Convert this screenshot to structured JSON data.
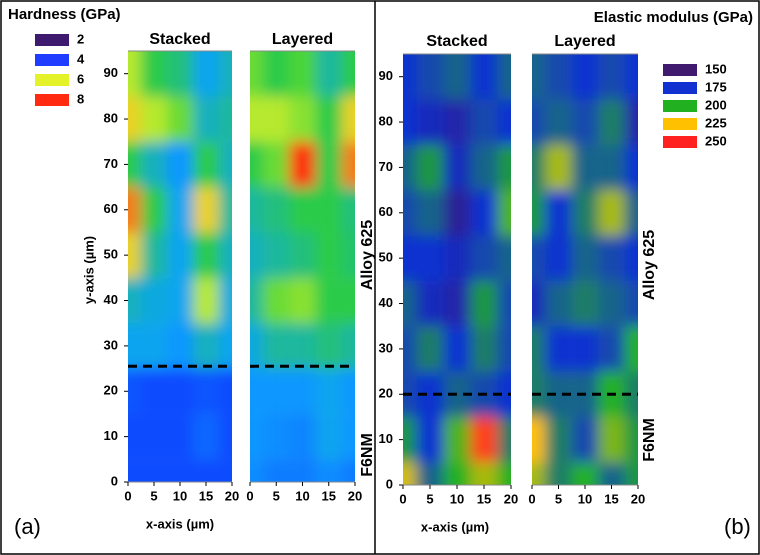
{
  "chart_data": [
    {
      "type": "heatmap",
      "title": "Hardness (GPa)",
      "xlabel": "x-axis (µm)",
      "ylabel": "y-axis (µm)",
      "tag": "(a)",
      "levels": [
        2,
        4,
        6,
        8
      ],
      "level_colors": [
        "#3d1a6e",
        "#1f3cff",
        "#e4f22a",
        "#ff2a10"
      ],
      "colorscale": [
        "#3d1a6e",
        "#1230ff",
        "#0aa0ff",
        "#2ccf3a",
        "#e4f22a",
        "#ff2a10"
      ],
      "x": [
        0,
        5,
        10,
        15,
        20
      ],
      "y": [
        0,
        10,
        20,
        30,
        40,
        50,
        60,
        70,
        80,
        90
      ],
      "xlim": [
        0,
        20
      ],
      "ylim": [
        0,
        95
      ],
      "xticks": [
        0,
        5,
        10,
        15,
        20
      ],
      "yticks": [
        0,
        10,
        20,
        30,
        40,
        50,
        60,
        70,
        80,
        90
      ],
      "interface": 25.5,
      "annotations": [
        "Alloy 625",
        "F6NM"
      ],
      "panels": [
        {
          "title": "Stacked",
          "z": [
            [
              3.5,
              3.5,
              3.5,
              3.5,
              3.5
            ],
            [
              3.5,
              3.5,
              3.5,
              3.8,
              3.5
            ],
            [
              3.6,
              3.5,
              3.5,
              3.6,
              3.5
            ],
            [
              4.5,
              4.5,
              4.3,
              4.8,
              4.5
            ],
            [
              4.8,
              4.6,
              4.5,
              6.5,
              4.6
            ],
            [
              7,
              5,
              4.5,
              5.5,
              4.8
            ],
            [
              7.5,
              5.5,
              4.5,
              7,
              5
            ],
            [
              5.5,
              4.8,
              4.3,
              5.5,
              4.8
            ],
            [
              7,
              6.5,
              6,
              4.8,
              5
            ],
            [
              6.5,
              5.5,
              5.2,
              4.5,
              4.8
            ]
          ]
        },
        {
          "title": "Layered",
          "z": [
            [
              4.2,
              4,
              4,
              4.2,
              4
            ],
            [
              4.3,
              4.2,
              4.1,
              4.5,
              4.3
            ],
            [
              4.3,
              4.3,
              4.3,
              4.5,
              4.3
            ],
            [
              4.6,
              5,
              5,
              5.2,
              5
            ],
            [
              5,
              6,
              6.2,
              5.5,
              5.5
            ],
            [
              4.8,
              5,
              5.2,
              5.5,
              5.3
            ],
            [
              5,
              5.2,
              5.5,
              5.5,
              5.2
            ],
            [
              5.5,
              6,
              8,
              5.5,
              7.5
            ],
            [
              6.5,
              6.5,
              6.2,
              5.5,
              7
            ],
            [
              6,
              5.5,
              5.8,
              5,
              5.5
            ]
          ]
        }
      ]
    },
    {
      "type": "heatmap",
      "title": "Elastic modulus (GPa)",
      "xlabel": "x-axis (µm)",
      "tag": "(b)",
      "levels": [
        150,
        175,
        200,
        225,
        250
      ],
      "level_colors": [
        "#3f1a6e",
        "#1030d0",
        "#20b020",
        "#ffc000",
        "#ff2020"
      ],
      "colorscale": [
        "#3f1a6e",
        "#1030d0",
        "#20b020",
        "#ffc000",
        "#ff2020"
      ],
      "x": [
        0,
        5,
        10,
        15,
        20
      ],
      "y": [
        0,
        10,
        20,
        30,
        40,
        50,
        60,
        70,
        80,
        90
      ],
      "xlim": [
        0,
        20
      ],
      "ylim": [
        0,
        95
      ],
      "xticks": [
        0,
        5,
        10,
        15,
        20
      ],
      "yticks": [
        0,
        10,
        20,
        30,
        40,
        50,
        60,
        70,
        80,
        90
      ],
      "interface": 20,
      "annotations": [
        "Alloy 625",
        "F6NM"
      ],
      "panels": [
        {
          "title": "Stacked",
          "z": [
            [
              220,
              185,
              200,
              215,
              200
            ],
            [
              195,
              175,
              205,
              245,
              190
            ],
            [
              180,
              175,
              185,
              180,
              175
            ],
            [
              180,
              190,
              175,
              190,
              180
            ],
            [
              185,
              170,
              165,
              195,
              180
            ],
            [
              175,
              175,
              170,
              180,
              185
            ],
            [
              180,
              185,
              160,
              175,
              205
            ],
            [
              185,
              195,
              170,
              185,
              195
            ],
            [
              175,
              170,
              165,
              180,
              175
            ],
            [
              175,
              180,
              185,
              175,
              185
            ]
          ]
        },
        {
          "title": "Layered",
          "z": [
            [
              215,
              190,
              200,
              185,
              195
            ],
            [
              225,
              190,
              180,
              210,
              195
            ],
            [
              190,
              185,
              185,
              200,
              190
            ],
            [
              190,
              175,
              175,
              180,
              200
            ],
            [
              170,
              185,
              190,
              185,
              180
            ],
            [
              180,
              175,
              185,
              180,
              175
            ],
            [
              195,
              175,
              190,
              215,
              185
            ],
            [
              190,
              215,
              185,
              185,
              175
            ],
            [
              180,
              185,
              180,
              190,
              165
            ],
            [
              185,
              180,
              175,
              180,
              175
            ]
          ]
        }
      ]
    }
  ]
}
